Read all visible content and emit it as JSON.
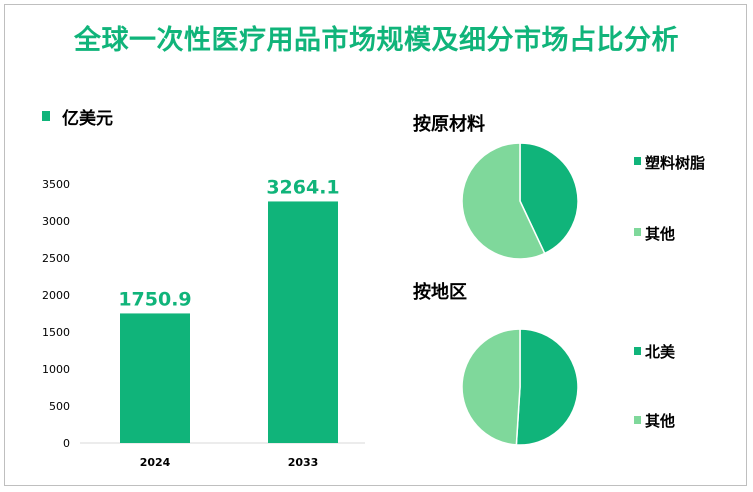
{
  "title": "全球一次性医疗用品市场规模及细分市场占比分析",
  "colors": {
    "primary": "#10b47a",
    "secondary": "#7fd89b",
    "axis": "#d9d9d9"
  },
  "chart_data": [
    {
      "type": "bar",
      "legend": "亿美元",
      "categories": [
        "2024",
        "2033"
      ],
      "values": [
        1750.9,
        3264.1
      ],
      "value_labels": [
        "1750.9",
        "3264.1"
      ],
      "yticks": [
        0,
        500,
        1000,
        1500,
        2000,
        2500,
        3000,
        3500
      ],
      "ylim": [
        0,
        3500
      ]
    },
    {
      "type": "pie",
      "title": "按原材料",
      "labels": [
        "塑料树脂",
        "其他"
      ],
      "values": [
        43,
        57
      ]
    },
    {
      "type": "pie",
      "title": "按地区",
      "labels": [
        "北美",
        "其他"
      ],
      "values": [
        51,
        49
      ]
    }
  ]
}
